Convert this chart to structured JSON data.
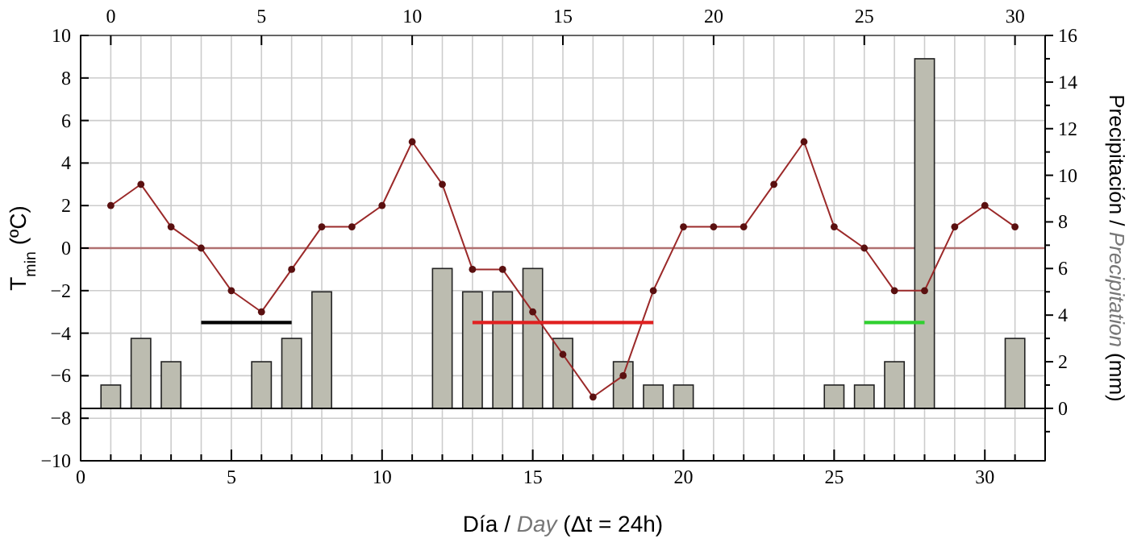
{
  "chart_data": {
    "type": "line",
    "xlabel": "Día / Day (Δt = 24h)",
    "ylabel": "T$_{min}$ (ºC)",
    "y2label": "Precipitación / Precipitation (mm)",
    "xlim": [
      0,
      32
    ],
    "xticks": [
      0,
      {
        "value": 1,
        "label": null
      },
      {
        "value": 2,
        "label": null
      },
      {
        "value": 3,
        "label": null
      },
      {
        "value": 4,
        "label": null
      },
      5,
      {
        "value": 6,
        "label": null
      },
      {
        "value": 7,
        "label": null
      },
      {
        "value": 8,
        "label": null
      },
      {
        "value": 9,
        "label": null
      },
      10,
      {
        "value": 11,
        "label": null
      },
      {
        "value": 12,
        "label": null
      },
      {
        "value": 13,
        "label": null
      },
      {
        "value": 14,
        "label": null
      },
      15,
      {
        "value": 16,
        "label": null
      },
      {
        "value": 17,
        "label": null
      },
      {
        "value": 18,
        "label": null
      },
      {
        "value": 19,
        "label": null
      },
      20,
      {
        "value": 21,
        "label": null
      },
      {
        "value": 22,
        "label": null
      },
      {
        "value": 23,
        "label": null
      },
      {
        "value": 24,
        "label": null
      },
      25,
      {
        "value": 26,
        "label": null
      },
      {
        "value": 27,
        "label": null
      },
      {
        "value": 28,
        "label": null
      },
      {
        "value": 29,
        "label": null
      },
      30,
      {
        "value": 31,
        "label": null
      }
    ],
    "x2lim": [
      -1,
      31
    ],
    "x2ticks": [
      0,
      5,
      10,
      15,
      20,
      25,
      30
    ],
    "ylim": [
      -10,
      10
    ],
    "yticks": [
      -10,
      -8,
      -6,
      -4,
      -2,
      0,
      2,
      4,
      6,
      8,
      10
    ],
    "y2lim": [
      -2.25,
      16
    ],
    "y2ticks": [
      {
        "value": -1,
        "label": null
      },
      0,
      {
        "value": 1,
        "label": null
      },
      2,
      {
        "value": 3,
        "label": null
      },
      4,
      {
        "value": 5,
        "label": null
      },
      6,
      {
        "value": 7,
        "label": null
      },
      8,
      {
        "value": 9,
        "label": null
      },
      10,
      {
        "value": 11,
        "label": null
      },
      12,
      {
        "value": 13,
        "label": null
      },
      14,
      {
        "value": 15,
        "label": null
      },
      16
    ],
    "grid": true,
    "ref_lines": [
      {
        "axis": "y",
        "value": 0,
        "color": "#b07070"
      }
    ],
    "series": [
      {
        "type": "bar",
        "axis": "y2",
        "color": "#bcbcb0",
        "x": [
          1,
          2,
          3,
          6,
          7,
          8,
          12,
          13,
          14,
          15,
          16,
          18,
          19,
          20,
          25,
          26,
          27,
          28,
          31
        ],
        "values": [
          1,
          3,
          2,
          2,
          3,
          5,
          6,
          5,
          5,
          6,
          3,
          2,
          1,
          1,
          1,
          1,
          2,
          15,
          3
        ]
      },
      {
        "color": "#9b2a2a",
        "marker": "circle",
        "x": [
          1,
          2,
          3,
          4,
          5,
          6,
          7,
          8,
          9,
          10,
          11,
          12,
          13,
          14,
          15,
          16,
          17,
          18,
          19,
          20,
          21,
          22,
          23,
          24,
          25,
          26,
          27,
          28,
          29,
          30,
          31
        ],
        "values": [
          2,
          3,
          1,
          0,
          -2,
          -3,
          -1,
          1,
          1,
          2,
          5,
          3,
          -1,
          -1,
          -3,
          -5,
          -7,
          -6,
          -2,
          1,
          1,
          1,
          3,
          5,
          1,
          0,
          -2,
          -2,
          1,
          2,
          1
        ]
      },
      {
        "color": "#000000",
        "marker": "none",
        "x": [
          4,
          7
        ],
        "values": [
          -3.5,
          -3.5
        ]
      },
      {
        "color": "#e02020",
        "marker": "none",
        "x": [
          13,
          19
        ],
        "values": [
          -3.5,
          -3.5
        ]
      },
      {
        "color": "#30d030",
        "marker": "none",
        "x": [
          26,
          28
        ],
        "values": [
          -3.5,
          -3.5
        ]
      }
    ]
  }
}
